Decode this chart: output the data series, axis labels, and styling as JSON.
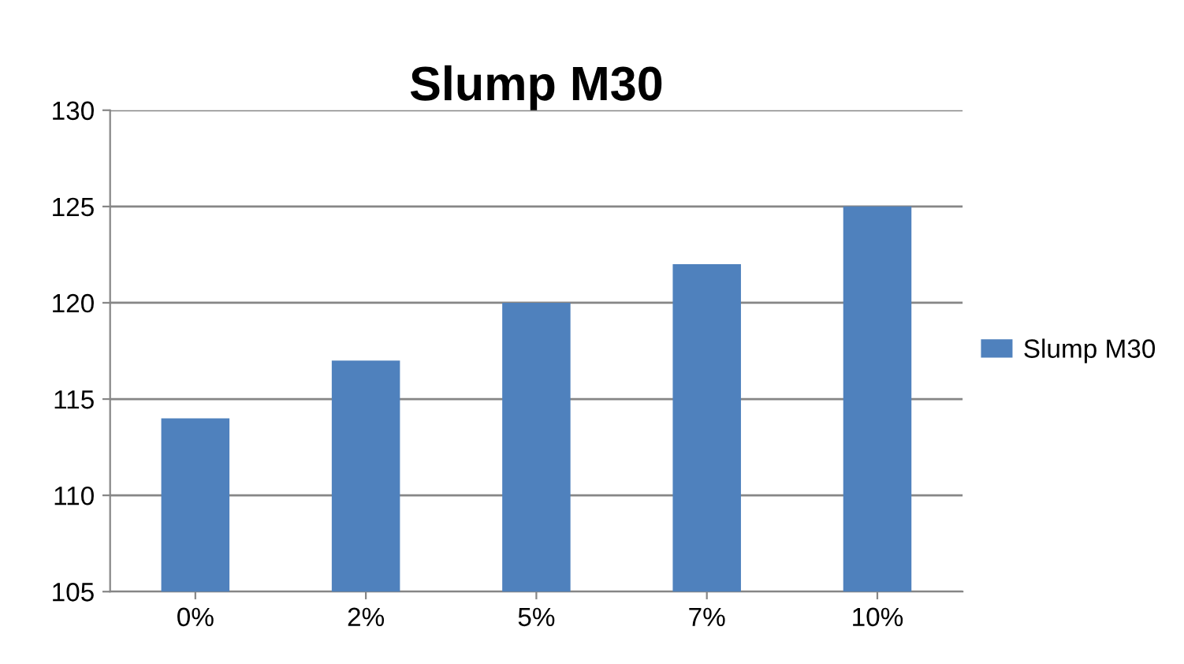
{
  "chart_data": {
    "type": "bar",
    "title": "Slump M30",
    "categories": [
      "0%",
      "2%",
      "5%",
      "7%",
      "10%"
    ],
    "series": [
      {
        "name": "Slump M30",
        "color": "#4f81bd",
        "values": [
          114,
          117,
          120,
          122,
          125
        ]
      }
    ],
    "ylim": [
      105,
      130
    ],
    "yticks": [
      105,
      110,
      115,
      120,
      125,
      130
    ],
    "grid": "y",
    "legend": "right"
  }
}
